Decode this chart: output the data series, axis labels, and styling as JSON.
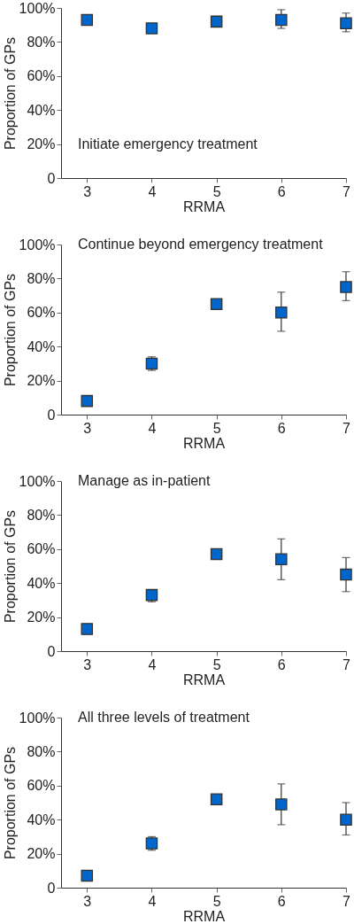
{
  "chart_data": [
    {
      "type": "scatter",
      "title": "Initiate emergency treatment",
      "xlabel": "RRMA",
      "ylabel": "Proportion of GPs",
      "x": [
        3,
        4,
        5,
        6,
        7
      ],
      "marker": "square",
      "xlim": [
        2.6,
        7
      ],
      "xticks": [
        3,
        4,
        5,
        6,
        7
      ],
      "ylim": [
        0,
        100
      ],
      "yticks": [
        {
          "value": 0,
          "label": "0"
        },
        {
          "value": 20,
          "label": "20%"
        },
        {
          "value": 40,
          "label": "40%"
        },
        {
          "value": 60,
          "label": "60%"
        },
        {
          "value": 80,
          "label": "80%"
        },
        {
          "value": 100,
          "label": "100%"
        }
      ],
      "series": [
        {
          "color": "#0066cc",
          "values": [
            93,
            88,
            92,
            93,
            91
          ],
          "errors": [
            null,
            null,
            null,
            [
              88,
              99
            ],
            [
              86,
              97
            ]
          ]
        }
      ]
    },
    {
      "type": "scatter",
      "title": "Continue beyond emergency treatment",
      "xlabel": "RRMA",
      "ylabel": "Proportion of GPs",
      "x": [
        3,
        4,
        5,
        6,
        7
      ],
      "marker": "square",
      "xlim": [
        2.6,
        7
      ],
      "xticks": [
        3,
        4,
        5,
        6,
        7
      ],
      "ylim": [
        0,
        100
      ],
      "yticks": [
        {
          "value": 0,
          "label": "0"
        },
        {
          "value": 20,
          "label": "20%"
        },
        {
          "value": 40,
          "label": "40%"
        },
        {
          "value": 60,
          "label": "60%"
        },
        {
          "value": 80,
          "label": "80%"
        },
        {
          "value": 100,
          "label": "100%"
        }
      ],
      "series": [
        {
          "color": "#0066cc",
          "values": [
            8,
            30,
            65,
            60,
            75
          ],
          "errors": [
            null,
            [
              26,
              34
            ],
            null,
            [
              49,
              72
            ],
            [
              67,
              84
            ]
          ]
        }
      ]
    },
    {
      "type": "scatter",
      "title": "Manage as in-patient",
      "xlabel": "RRMA",
      "ylabel": "Proportion of GPs",
      "x": [
        3,
        4,
        5,
        6,
        7
      ],
      "marker": "square",
      "xlim": [
        2.6,
        7
      ],
      "xticks": [
        3,
        4,
        5,
        6,
        7
      ],
      "ylim": [
        0,
        100
      ],
      "yticks": [
        {
          "value": 0,
          "label": "0"
        },
        {
          "value": 20,
          "label": "20%"
        },
        {
          "value": 40,
          "label": "40%"
        },
        {
          "value": 60,
          "label": "60%"
        },
        {
          "value": 80,
          "label": "80%"
        },
        {
          "value": 100,
          "label": "100%"
        }
      ],
      "series": [
        {
          "color": "#0066cc",
          "values": [
            13,
            33,
            57,
            54,
            45
          ],
          "errors": [
            [
              10,
              16
            ],
            [
              29,
              36
            ],
            null,
            [
              42,
              66
            ],
            [
              35,
              55
            ]
          ]
        }
      ]
    },
    {
      "type": "scatter",
      "title": "All three levels of treatment",
      "xlabel": "RRMA",
      "ylabel": "Proportion of GPs",
      "x": [
        3,
        4,
        5,
        6,
        7
      ],
      "marker": "square",
      "xlim": [
        2.6,
        7
      ],
      "xticks": [
        3,
        4,
        5,
        6,
        7
      ],
      "ylim": [
        0,
        100
      ],
      "yticks": [
        {
          "value": 0,
          "label": "0"
        },
        {
          "value": 20,
          "label": "20%"
        },
        {
          "value": 40,
          "label": "40%"
        },
        {
          "value": 60,
          "label": "60%"
        },
        {
          "value": 80,
          "label": "80%"
        },
        {
          "value": 100,
          "label": "100%"
        }
      ],
      "series": [
        {
          "color": "#0066cc",
          "values": [
            7,
            26,
            52,
            49,
            40
          ],
          "errors": [
            null,
            [
              22,
              30
            ],
            null,
            [
              37,
              61
            ],
            [
              31,
              50
            ]
          ]
        }
      ]
    }
  ]
}
